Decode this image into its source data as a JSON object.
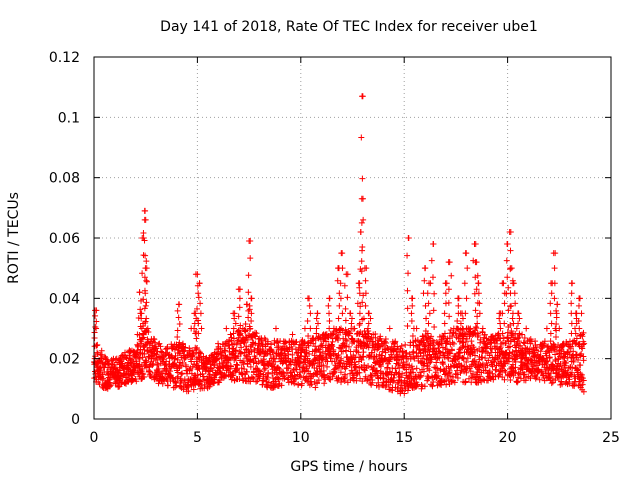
{
  "chart_data": {
    "type": "scatter",
    "title": "Day 141 of 2018, Rate Of TEC Index for receiver ube1",
    "xlabel": "GPS time / hours",
    "ylabel": "ROTI / TECUs",
    "xlim": [
      0,
      25
    ],
    "ylim": [
      0,
      0.12
    ],
    "xticks": [
      "0",
      "5",
      "10",
      "15",
      "20",
      "25"
    ],
    "yticks": [
      "0",
      "0.02",
      "0.04",
      "0.06",
      "0.08",
      "0.1",
      "0.12"
    ],
    "grid": true,
    "marker": "plus",
    "color": "#ff0000",
    "series": [
      {
        "x": [
          0.05,
          0.1,
          0.15,
          0.2,
          0.3,
          0.5,
          0.7,
          0.9,
          1.1,
          1.3,
          1.5,
          1.7,
          1.9,
          2.1,
          2.2,
          2.3,
          2.4,
          2.45,
          2.5,
          2.55,
          2.6,
          2.7,
          2.9,
          3.1,
          3.3,
          3.5,
          3.7,
          3.9,
          4.1,
          4.3,
          4.5,
          4.7,
          4.9,
          5.0,
          5.1,
          5.2,
          5.4,
          5.6,
          5.8,
          6.0,
          6.2,
          6.4,
          6.6,
          6.8,
          7.0,
          7.2,
          7.4,
          7.5,
          7.6,
          7.8,
          8.0,
          8.2,
          8.4,
          8.6,
          8.8,
          9.0,
          9.2,
          9.4,
          9.6,
          9.8,
          10.0,
          10.2,
          10.4,
          10.6,
          10.8,
          11.0,
          11.2,
          11.4,
          11.6,
          11.8,
          12.0,
          12.2,
          12.4,
          12.6,
          12.8,
          12.9,
          12.95,
          13.0,
          13.1,
          13.3,
          13.5,
          13.7,
          13.9,
          14.1,
          14.3,
          14.5,
          14.7,
          14.9,
          15.0,
          15.1,
          15.2,
          15.4,
          15.6,
          15.8,
          16.0,
          16.2,
          16.4,
          16.6,
          16.8,
          17.0,
          17.2,
          17.4,
          17.6,
          17.8,
          18.0,
          18.2,
          18.4,
          18.5,
          18.6,
          18.8,
          19.0,
          19.2,
          19.4,
          19.6,
          19.8,
          20.0,
          20.1,
          20.2,
          20.3,
          20.5,
          20.7,
          20.9,
          21.1,
          21.3,
          21.5,
          21.7,
          21.9,
          22.1,
          22.3,
          22.4,
          22.5,
          22.7,
          22.9,
          23.1,
          23.3,
          23.5,
          23.6,
          23.7
        ],
        "y": [
          0.036,
          0.03,
          0.022,
          0.016,
          0.014,
          0.018,
          0.012,
          0.015,
          0.02,
          0.017,
          0.022,
          0.013,
          0.019,
          0.028,
          0.042,
          0.035,
          0.06,
          0.069,
          0.066,
          0.05,
          0.03,
          0.025,
          0.02,
          0.018,
          0.022,
          0.016,
          0.014,
          0.02,
          0.038,
          0.025,
          0.015,
          0.03,
          0.035,
          0.048,
          0.045,
          0.03,
          0.02,
          0.012,
          0.018,
          0.025,
          0.022,
          0.03,
          0.028,
          0.035,
          0.043,
          0.03,
          0.038,
          0.059,
          0.04,
          0.02,
          0.022,
          0.018,
          0.025,
          0.02,
          0.03,
          0.015,
          0.025,
          0.02,
          0.028,
          0.018,
          0.022,
          0.03,
          0.04,
          0.025,
          0.035,
          0.02,
          0.028,
          0.04,
          0.03,
          0.05,
          0.055,
          0.048,
          0.035,
          0.03,
          0.045,
          0.062,
          0.073,
          0.107,
          0.05,
          0.035,
          0.028,
          0.025,
          0.02,
          0.022,
          0.03,
          0.025,
          0.018,
          0.015,
          0.012,
          0.02,
          0.06,
          0.04,
          0.03,
          0.022,
          0.05,
          0.045,
          0.058,
          0.02,
          0.025,
          0.045,
          0.052,
          0.03,
          0.04,
          0.035,
          0.055,
          0.03,
          0.058,
          0.052,
          0.045,
          0.03,
          0.025,
          0.022,
          0.02,
          0.035,
          0.045,
          0.058,
          0.062,
          0.05,
          0.045,
          0.035,
          0.028,
          0.03,
          0.025,
          0.022,
          0.02,
          0.025,
          0.03,
          0.045,
          0.055,
          0.038,
          0.03,
          0.025,
          0.022,
          0.045,
          0.035,
          0.04,
          0.028,
          0.025
        ]
      }
    ],
    "band": {
      "x": [
        0,
        0.5,
        1,
        1.5,
        2,
        2.5,
        3,
        3.5,
        4,
        4.5,
        5,
        5.5,
        6,
        6.5,
        7,
        7.5,
        8,
        8.5,
        9,
        9.5,
        10,
        10.5,
        11,
        11.5,
        12,
        12.5,
        13,
        13.5,
        14,
        14.5,
        15,
        15.5,
        16,
        16.5,
        17,
        17.5,
        18,
        18.5,
        19,
        19.5,
        20,
        20.5,
        21,
        21.5,
        22,
        22.5,
        23,
        23.5
      ],
      "low": [
        0.012,
        0.01,
        0.01,
        0.011,
        0.012,
        0.014,
        0.012,
        0.011,
        0.01,
        0.009,
        0.01,
        0.01,
        0.012,
        0.013,
        0.012,
        0.012,
        0.011,
        0.01,
        0.011,
        0.012,
        0.011,
        0.01,
        0.011,
        0.013,
        0.012,
        0.012,
        0.012,
        0.011,
        0.01,
        0.009,
        0.008,
        0.01,
        0.01,
        0.011,
        0.011,
        0.012,
        0.012,
        0.012,
        0.012,
        0.013,
        0.013,
        0.012,
        0.013,
        0.013,
        0.012,
        0.011,
        0.011,
        0.009
      ],
      "high": [
        0.026,
        0.022,
        0.02,
        0.022,
        0.024,
        0.03,
        0.026,
        0.024,
        0.026,
        0.024,
        0.024,
        0.02,
        0.024,
        0.026,
        0.03,
        0.03,
        0.028,
        0.026,
        0.026,
        0.026,
        0.026,
        0.027,
        0.028,
        0.03,
        0.03,
        0.032,
        0.03,
        0.029,
        0.027,
        0.026,
        0.025,
        0.026,
        0.028,
        0.027,
        0.028,
        0.03,
        0.03,
        0.031,
        0.029,
        0.028,
        0.029,
        0.028,
        0.027,
        0.026,
        0.026,
        0.025,
        0.026,
        0.028
      ]
    }
  }
}
